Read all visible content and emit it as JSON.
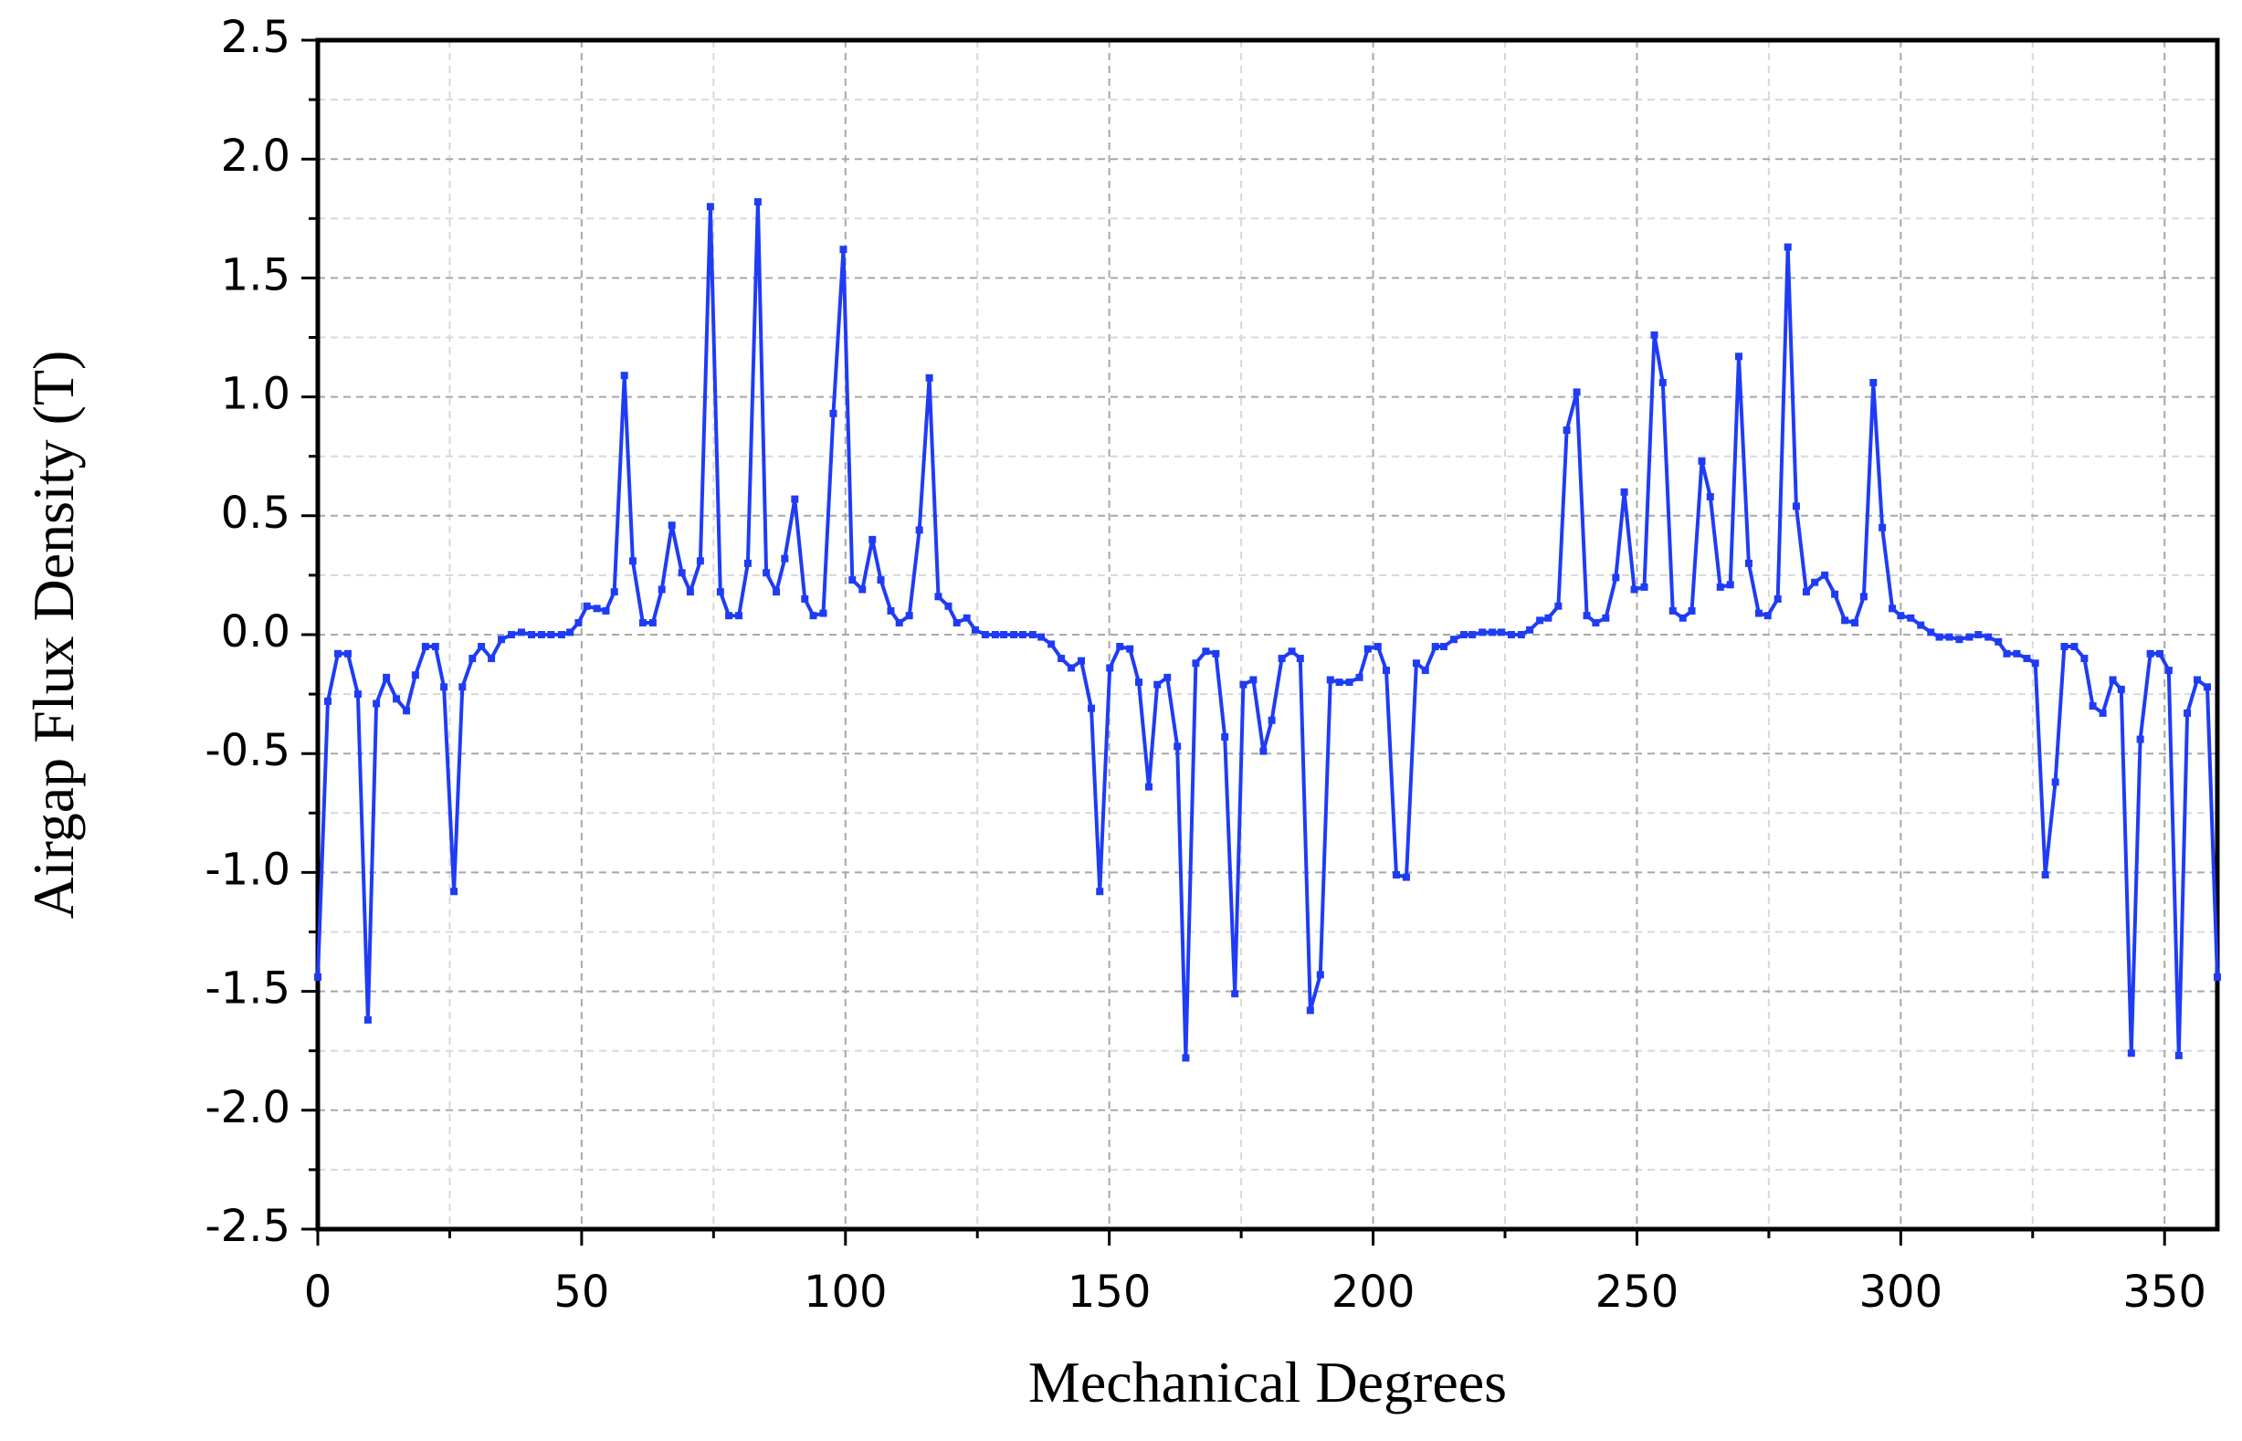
{
  "chart_data": {
    "type": "line",
    "xlabel": "Mechanical Degrees",
    "ylabel": "Airgap Flux Density (T)",
    "xlim": [
      0,
      360
    ],
    "ylim": [
      -2.5,
      2.5
    ],
    "xticks": [
      0,
      50,
      100,
      150,
      200,
      250,
      300,
      350
    ],
    "yticks": [
      -2.5,
      {
        "value": -2,
        "label": "-2.0"
      },
      -1.5,
      {
        "value": -1,
        "label": "-1.0"
      },
      -0.5,
      {
        "value": 0,
        "label": "0.0"
      },
      0.5,
      {
        "value": 1,
        "label": "1.0"
      },
      1.5,
      {
        "value": 2,
        "label": "2.0"
      },
      2.5
    ],
    "grid": true,
    "series": [
      {
        "color": "#1f3cf5",
        "x": [
          0,
          1.9,
          3.8,
          5.7,
          7.6,
          9.5,
          11.1,
          13.0,
          14.9,
          16.8,
          18.5,
          20.4,
          22.3,
          23.9,
          25.8,
          27.4,
          29.3,
          31.0,
          32.9,
          34.8,
          36.7,
          38.6,
          40.5,
          42.4,
          44.2,
          46.2,
          47.8,
          49.4,
          51.0,
          52.9,
          54.6,
          56.2,
          58.1,
          59.7,
          61.6,
          63.5,
          65.2,
          67.1,
          69.0,
          70.6,
          72.5,
          74.4,
          76.3,
          77.9,
          79.8,
          81.5,
          83.4,
          85.0,
          86.9,
          88.5,
          90.4,
          92.3,
          93.9,
          95.8,
          97.7,
          99.6,
          101.3,
          103.2,
          105.1,
          106.7,
          108.6,
          110.2,
          112.1,
          114.0,
          115.9,
          117.6,
          119.5,
          121.1,
          123.0,
          124.6,
          126.5,
          128.4,
          130.0,
          131.9,
          133.6,
          135.5,
          137.1,
          139.0,
          140.9,
          142.8,
          144.7,
          146.6,
          148.2,
          150.1,
          152.0,
          153.9,
          155.6,
          157.5,
          159.1,
          161.0,
          162.9,
          164.5,
          166.4,
          168.3,
          170.2,
          171.9,
          173.8,
          175.4,
          177.3,
          179.2,
          180.8,
          182.7,
          184.6,
          186.2,
          188.1,
          190.0,
          191.9,
          193.6,
          195.5,
          197.4,
          199.0,
          200.9,
          202.5,
          204.4,
          206.3,
          208.2,
          209.9,
          211.8,
          213.4,
          215.3,
          217.2,
          218.8,
          220.7,
          222.6,
          224.3,
          226.2,
          228.1,
          229.7,
          231.6,
          233.2,
          235.1,
          236.7,
          238.6,
          240.5,
          242.2,
          244.1,
          246.0,
          247.6,
          249.5,
          251.4,
          253.3,
          254.9,
          256.8,
          258.7,
          260.4,
          262.3,
          263.9,
          265.8,
          267.7,
          269.3,
          271.2,
          273.1,
          274.8,
          276.7,
          278.6,
          280.2,
          282.1,
          283.7,
          285.6,
          287.5,
          289.4,
          291.3,
          293.0,
          294.8,
          296.5,
          298.4,
          300.0,
          301.9,
          303.8,
          305.7,
          307.3,
          309.2,
          311.1,
          313.0,
          314.7,
          316.6,
          318.5,
          320.1,
          322.0,
          323.9,
          325.5,
          327.4,
          329.3,
          331.0,
          332.9,
          334.8,
          336.4,
          338.3,
          340.2,
          341.8,
          343.7,
          345.4,
          347.3,
          349.1,
          350.8,
          352.7,
          354.3,
          356.2,
          358.1,
          360
        ],
        "values": [
          -1.44,
          -0.28,
          -0.08,
          -0.08,
          -0.25,
          -1.62,
          -0.29,
          -0.18,
          -0.27,
          -0.32,
          -0.17,
          -0.05,
          -0.05,
          -0.22,
          -1.08,
          -0.22,
          -0.1,
          -0.05,
          -0.1,
          -0.02,
          0,
          0.01,
          0,
          0,
          0,
          0,
          0.01,
          0.05,
          0.12,
          0.11,
          0.1,
          0.18,
          1.09,
          0.31,
          0.05,
          0.05,
          0.19,
          0.46,
          0.26,
          0.18,
          0.31,
          1.8,
          0.18,
          0.08,
          0.08,
          0.3,
          1.82,
          0.26,
          0.18,
          0.32,
          0.57,
          0.15,
          0.08,
          0.09,
          0.93,
          1.62,
          0.23,
          0.19,
          0.4,
          0.23,
          0.1,
          0.05,
          0.08,
          0.44,
          1.08,
          0.16,
          0.12,
          0.05,
          0.07,
          0.02,
          0,
          0,
          0,
          0,
          0,
          0,
          -0.01,
          -0.04,
          -0.1,
          -0.14,
          -0.11,
          -0.31,
          -1.08,
          -0.14,
          -0.05,
          -0.06,
          -0.2,
          -0.64,
          -0.21,
          -0.18,
          -0.47,
          -1.78,
          -0.12,
          -0.07,
          -0.08,
          -0.43,
          -1.51,
          -0.21,
          -0.19,
          -0.49,
          -0.36,
          -0.1,
          -0.07,
          -0.1,
          -1.58,
          -1.43,
          -0.19,
          -0.2,
          -0.2,
          -0.18,
          -0.06,
          -0.05,
          -0.15,
          -1.01,
          -1.02,
          -0.12,
          -0.15,
          -0.05,
          -0.05,
          -0.02,
          0,
          0,
          0.01,
          0.01,
          0.01,
          0,
          0,
          0.02,
          0.06,
          0.07,
          0.12,
          0.86,
          1.02,
          0.08,
          0.05,
          0.07,
          0.24,
          0.6,
          0.19,
          0.2,
          1.26,
          1.06,
          0.1,
          0.07,
          0.1,
          0.73,
          0.58,
          0.2,
          0.21,
          1.17,
          0.3,
          0.09,
          0.08,
          0.15,
          1.63,
          0.54,
          0.18,
          0.22,
          0.25,
          0.17,
          0.06,
          0.05,
          0.16,
          1.06,
          0.45,
          0.11,
          0.08,
          0.07,
          0.04,
          0.01,
          -0.01,
          -0.01,
          -0.02,
          -0.01,
          0,
          -0.01,
          -0.03,
          -0.08,
          -0.08,
          -0.1,
          -0.12,
          -1.01,
          -0.62,
          -0.05,
          -0.05,
          -0.1,
          -0.3,
          -0.33,
          -0.19,
          -0.23,
          -1.76,
          -0.44,
          -0.08,
          -0.08,
          -0.15,
          -1.77,
          -0.33,
          -0.19,
          -0.22,
          -1.44
        ]
      }
    ]
  }
}
